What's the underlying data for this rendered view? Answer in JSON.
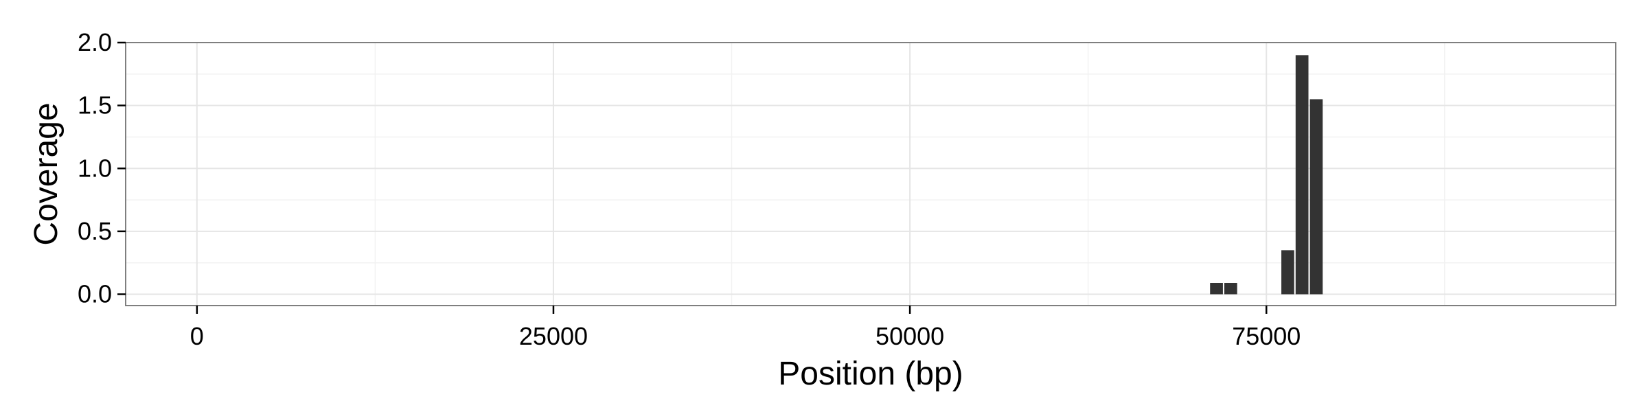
{
  "chart_data": {
    "type": "bar",
    "title": "",
    "xlabel": "Position (bp)",
    "ylabel": "Coverage",
    "xlim": [
      -5000,
      99500
    ],
    "ylim": [
      -0.09,
      2.0
    ],
    "x_ticks": [
      0,
      25000,
      50000,
      75000
    ],
    "x_tick_labels": [
      "0",
      "25000",
      "50000",
      "75000"
    ],
    "y_ticks": [
      0.0,
      0.5,
      1.0,
      1.5,
      2.0
    ],
    "y_tick_labels": [
      "0.0",
      "0.5",
      "1.0",
      "1.5",
      "2.0"
    ],
    "bin_width": 1000,
    "bars": [
      {
        "x": 71500,
        "value": 0.09
      },
      {
        "x": 72500,
        "value": 0.09
      },
      {
        "x": 76500,
        "value": 0.35
      },
      {
        "x": 77500,
        "value": 1.9
      },
      {
        "x": 78500,
        "value": 1.55
      }
    ],
    "grid": true,
    "legend": "none",
    "colors": {
      "bar": "#333333",
      "panel_border": "#7f7f7f",
      "grid_major": "#e5e5e5",
      "grid_minor": "#f2f2f2",
      "background": "#ffffff"
    }
  }
}
